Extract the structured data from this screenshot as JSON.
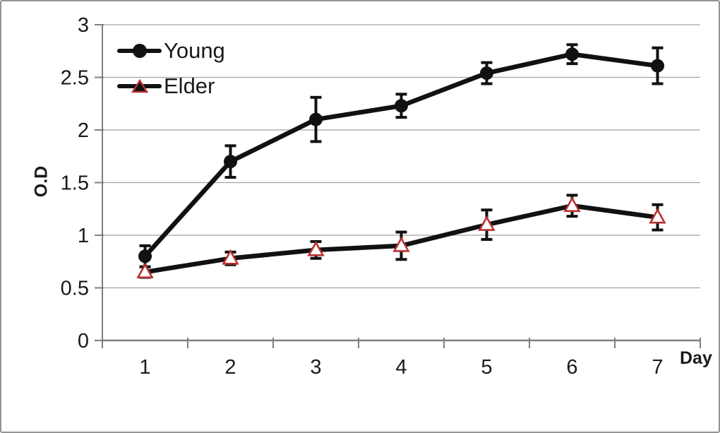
{
  "frame": {
    "background": "#ffffff",
    "border_color": "#949494"
  },
  "chart_data": {
    "type": "line",
    "title": "",
    "xlabel": "Day",
    "ylabel": "O.D",
    "x": [
      "1",
      "2",
      "3",
      "4",
      "5",
      "6",
      "7"
    ],
    "ylim": [
      0,
      3
    ],
    "yticks": [
      0,
      0.5,
      1,
      1.5,
      2,
      2.5,
      3
    ],
    "ytick_labels": [
      "0",
      "0.5",
      "1",
      "1.5",
      "2",
      "2.5",
      "3"
    ],
    "grid": true,
    "legend_position": "top-left-inside",
    "colors": {
      "series_line": "#111111",
      "gridline": "#a3a3a3",
      "axis": "#7f7f7f",
      "text": "#1a1a1a",
      "elder_marker_stroke": "#b83232"
    },
    "series": [
      {
        "name": "Young",
        "marker": "circle",
        "color": "#111111",
        "marker_fill": "#111111",
        "marker_stroke": "#111111",
        "values": [
          0.8,
          1.7,
          2.1,
          2.23,
          2.54,
          2.72,
          2.61
        ],
        "errors": [
          0.1,
          0.15,
          0.21,
          0.11,
          0.1,
          0.09,
          0.17
        ]
      },
      {
        "name": "Elder",
        "marker": "triangle",
        "color": "#111111",
        "marker_fill": "#ffffff",
        "marker_stroke": "#b83232",
        "values": [
          0.65,
          0.78,
          0.86,
          0.9,
          1.1,
          1.28,
          1.17
        ],
        "errors": [
          0.05,
          0.06,
          0.08,
          0.13,
          0.14,
          0.1,
          0.12
        ]
      }
    ]
  }
}
